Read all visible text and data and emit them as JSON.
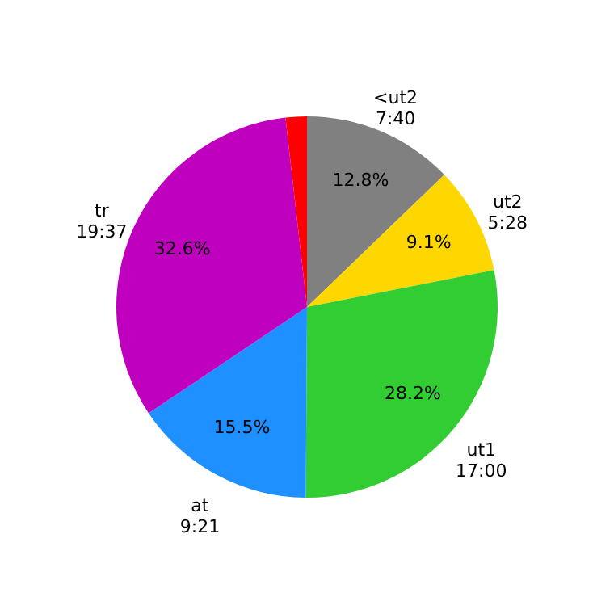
{
  "chart_data": {
    "type": "pie",
    "categories": [
      "<ut2\n7:40",
      "ut2\n5:28",
      "ut1\n17:00",
      "at\n9:21",
      "tr\n19:37",
      null
    ],
    "values": [
      12.8,
      9.1,
      28.2,
      15.5,
      32.6,
      1.8
    ],
    "colors": [
      "#808080",
      "#ffd700",
      "#32cd32",
      "#1e90ff",
      "#bf00bf",
      "#ff0000"
    ],
    "value_labels": [
      "12.8%",
      "9.1%",
      "28.2%",
      "15.5%",
      "32.6%",
      null
    ]
  }
}
